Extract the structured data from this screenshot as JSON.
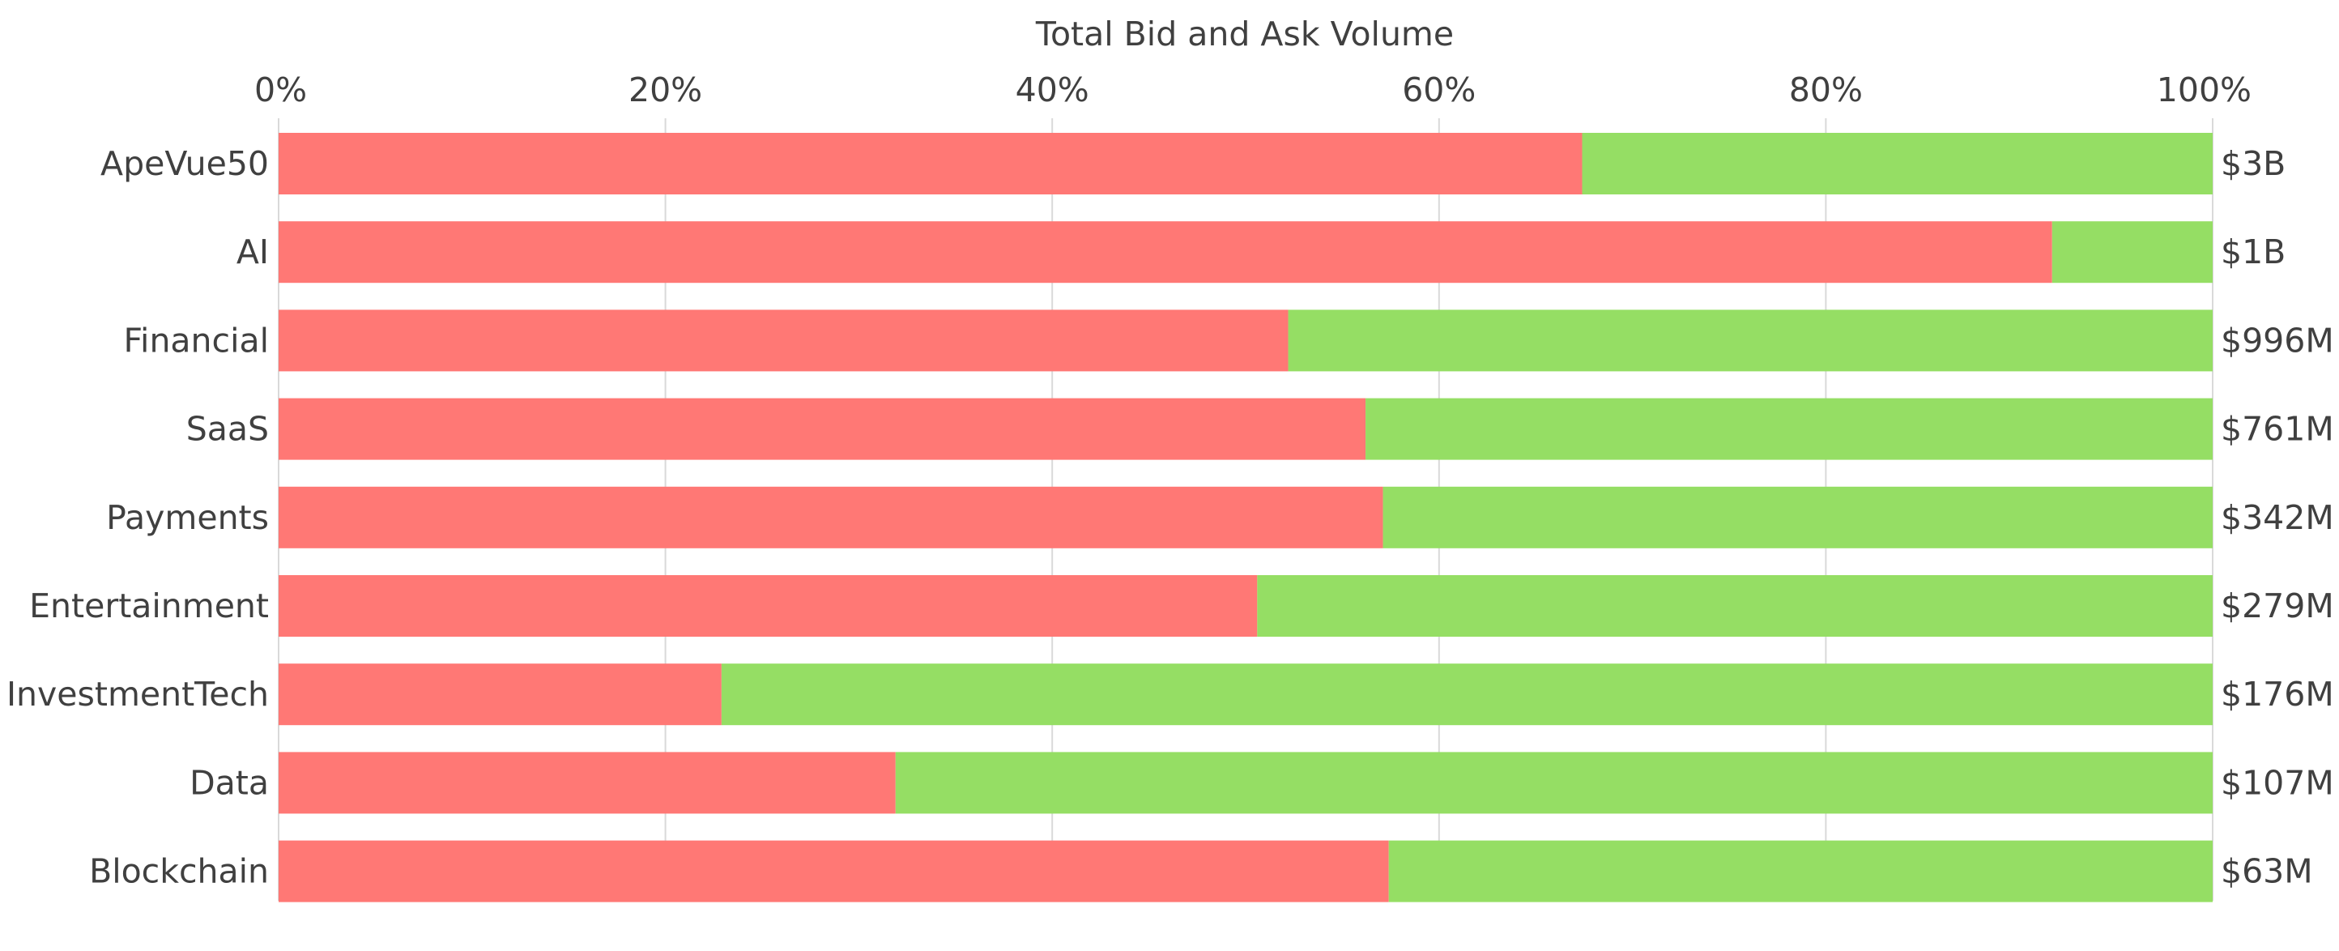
{
  "chart_data": {
    "type": "bar",
    "orientation": "horizontal",
    "stacked": "percent",
    "title": "Total Bid and Ask Volume",
    "xlabel": "",
    "ylabel": "",
    "xlim": [
      0,
      100
    ],
    "x_ticks": [
      "0%",
      "20%",
      "40%",
      "60%",
      "80%",
      "100%"
    ],
    "x_axis_position": "top",
    "grid": true,
    "legend": "none",
    "categories": [
      "ApeVue50",
      "AI",
      "Financial",
      "SaaS",
      "Payments",
      "Entertainment",
      "InvestmentTech",
      "Data",
      "Blockchain"
    ],
    "series": [
      {
        "color": "#ff7875",
        "values": [
          67.4,
          91.7,
          52.2,
          56.2,
          57.1,
          50.6,
          22.9,
          31.9,
          57.4
        ]
      },
      {
        "color": "#95de64",
        "values": [
          32.6,
          8.3,
          47.8,
          43.8,
          42.9,
          49.4,
          77.1,
          68.1,
          42.6
        ]
      }
    ],
    "totals": [
      "$3B",
      "$1B",
      "$996M",
      "$761M",
      "$342M",
      "$279M",
      "$176M",
      "$107M",
      "$63M"
    ]
  }
}
